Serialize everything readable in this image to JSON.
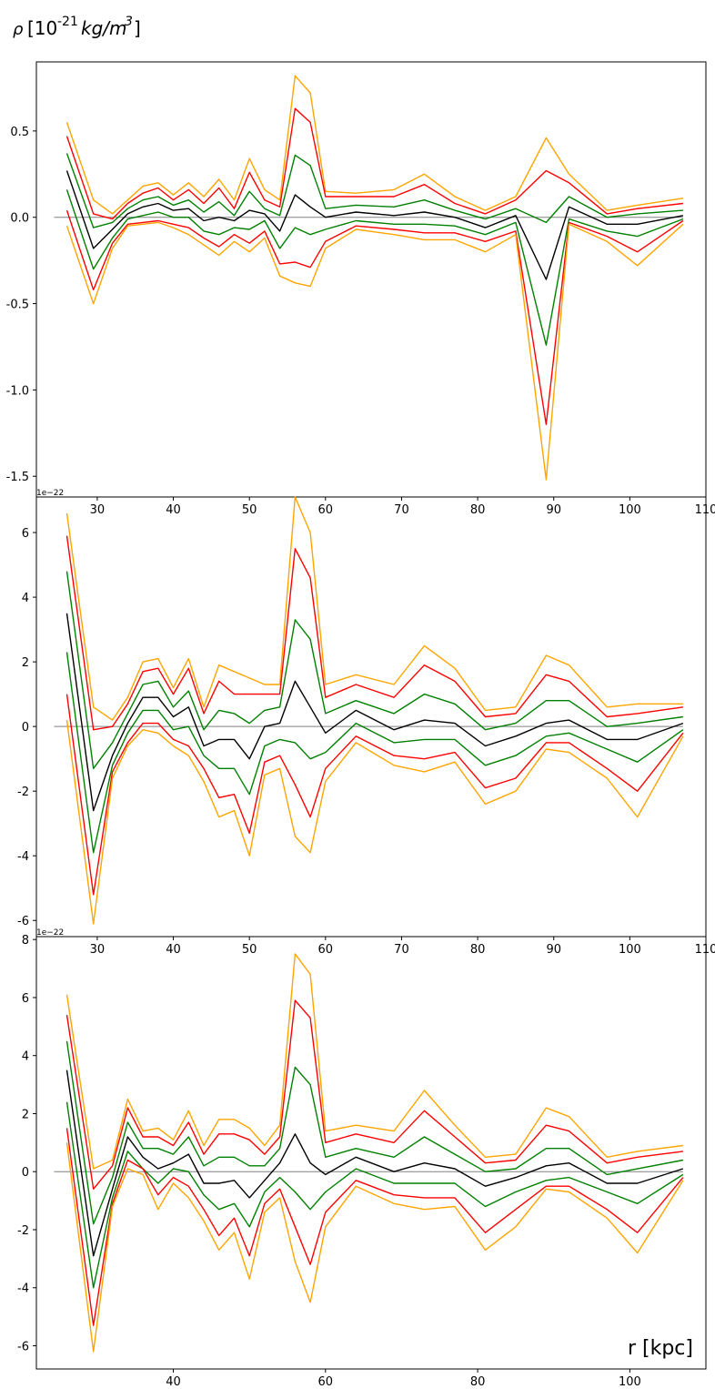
{
  "header": {
    "y_label_symbol": "ρ",
    "y_label_bracket_open": "[10",
    "y_label_exponent": "-21",
    "y_label_units": "kg/m",
    "y_label_units_exp": "3",
    "y_label_bracket_close": "]"
  },
  "chart_data": [
    {
      "type": "line",
      "xlim": [
        22,
        110
      ],
      "ylim": [
        -1.62,
        0.9
      ],
      "xticks": [
        "30",
        "40",
        "50",
        "60",
        "70",
        "80",
        "90",
        "100",
        "110"
      ],
      "xtick_values": [
        30,
        40,
        50,
        60,
        70,
        80,
        90,
        100,
        110
      ],
      "yticks": [
        "0.5",
        "0.0",
        "-0.5",
        "-1.0",
        "-1.5"
      ],
      "ytick_values": [
        0.5,
        0.0,
        -0.5,
        -1.0,
        -1.5
      ],
      "offset_text": "",
      "colors": [
        "#ffa500",
        "#ff0000",
        "#008000",
        "#000000",
        "#008000",
        "#ff0000",
        "#ffa500"
      ],
      "x": [
        26,
        29.5,
        32,
        34,
        36,
        38,
        40,
        42,
        44,
        46,
        48,
        50,
        52,
        54,
        56,
        58,
        60,
        64,
        69,
        73,
        77,
        81,
        85,
        89,
        92,
        97,
        101,
        107
      ],
      "series": [
        {
          "values": [
            0.55,
            0.1,
            0.02,
            0.1,
            0.18,
            0.2,
            0.13,
            0.2,
            0.12,
            0.22,
            0.1,
            0.34,
            0.16,
            0.1,
            0.82,
            0.72,
            0.15,
            0.14,
            0.16,
            0.25,
            0.12,
            0.04,
            0.12,
            0.46,
            0.25,
            0.04,
            0.07,
            0.11
          ]
        },
        {
          "values": [
            0.47,
            0.02,
            -0.01,
            0.08,
            0.14,
            0.17,
            0.1,
            0.16,
            0.08,
            0.17,
            0.05,
            0.26,
            0.1,
            0.06,
            0.63,
            0.55,
            0.12,
            0.12,
            0.12,
            0.19,
            0.08,
            0.02,
            0.1,
            0.27,
            0.2,
            0.02,
            0.05,
            0.08
          ]
        },
        {
          "values": [
            0.37,
            -0.06,
            -0.03,
            0.05,
            0.1,
            0.12,
            0.07,
            0.1,
            0.03,
            0.09,
            0.01,
            0.15,
            0.05,
            0.01,
            0.36,
            0.3,
            0.05,
            0.07,
            0.06,
            0.1,
            0.04,
            -0.01,
            0.05,
            -0.03,
            0.12,
            0.0,
            0.02,
            0.04
          ]
        },
        {
          "values": [
            0.27,
            -0.18,
            -0.07,
            0.02,
            0.06,
            0.08,
            0.04,
            0.05,
            -0.02,
            0.0,
            -0.02,
            0.04,
            0.02,
            -0.08,
            0.13,
            0.06,
            0.0,
            0.03,
            0.01,
            0.03,
            0.0,
            -0.06,
            0.01,
            -0.36,
            0.06,
            -0.04,
            -0.04,
            0.01
          ]
        },
        {
          "values": [
            0.16,
            -0.3,
            -0.12,
            -0.01,
            0.01,
            0.03,
            0.0,
            0.0,
            -0.08,
            -0.1,
            -0.06,
            -0.07,
            -0.02,
            -0.18,
            -0.06,
            -0.1,
            -0.07,
            -0.02,
            -0.04,
            -0.04,
            -0.05,
            -0.1,
            -0.03,
            -0.74,
            -0.01,
            -0.08,
            -0.11,
            -0.01
          ]
        },
        {
          "values": [
            0.04,
            -0.42,
            -0.15,
            -0.04,
            -0.03,
            -0.02,
            -0.04,
            -0.06,
            -0.12,
            -0.17,
            -0.1,
            -0.15,
            -0.08,
            -0.27,
            -0.26,
            -0.29,
            -0.14,
            -0.05,
            -0.07,
            -0.09,
            -0.09,
            -0.14,
            -0.08,
            -1.2,
            -0.03,
            -0.11,
            -0.2,
            -0.02
          ]
        },
        {
          "values": [
            -0.05,
            -0.5,
            -0.18,
            -0.05,
            -0.04,
            -0.03,
            -0.06,
            -0.1,
            -0.16,
            -0.22,
            -0.14,
            -0.2,
            -0.12,
            -0.34,
            -0.38,
            -0.4,
            -0.18,
            -0.07,
            -0.1,
            -0.13,
            -0.13,
            -0.2,
            -0.1,
            -1.52,
            -0.04,
            -0.14,
            -0.28,
            -0.04
          ]
        }
      ]
    },
    {
      "type": "line",
      "xlim": [
        22,
        110
      ],
      "ylim": [
        -6.5,
        7.1
      ],
      "xticks": [
        "30",
        "40",
        "50",
        "60",
        "70",
        "80",
        "90",
        "100",
        "110"
      ],
      "xtick_values": [
        30,
        40,
        50,
        60,
        70,
        80,
        90,
        100,
        110
      ],
      "yticks": [
        "6",
        "4",
        "2",
        "0",
        "-2",
        "-4",
        "-6"
      ],
      "ytick_values": [
        6,
        4,
        2,
        0,
        -2,
        -4,
        -6
      ],
      "offset_text": "1e−22",
      "colors": [
        "#ffa500",
        "#ff0000",
        "#008000",
        "#000000",
        "#008000",
        "#ff0000",
        "#ffa500"
      ],
      "x": [
        26,
        29.5,
        32,
        34,
        36,
        38,
        40,
        42,
        44,
        46,
        48,
        50,
        52,
        54,
        56,
        58,
        60,
        64,
        69,
        73,
        77,
        81,
        85,
        89,
        92,
        97,
        101,
        107
      ],
      "series": [
        {
          "values": [
            6.6,
            0.6,
            0.2,
            0.9,
            2.0,
            2.1,
            1.2,
            2.1,
            0.6,
            1.9,
            1.7,
            1.5,
            1.3,
            1.3,
            7.1,
            6.0,
            1.3,
            1.6,
            1.3,
            2.5,
            1.8,
            0.5,
            0.6,
            2.2,
            1.9,
            0.6,
            0.7,
            0.7
          ]
        },
        {
          "values": [
            5.9,
            -0.1,
            0.0,
            0.7,
            1.7,
            1.8,
            1.0,
            1.8,
            0.4,
            1.4,
            1.0,
            1.0,
            1.0,
            1.0,
            5.5,
            4.6,
            0.9,
            1.3,
            0.9,
            1.9,
            1.4,
            0.3,
            0.4,
            1.6,
            1.4,
            0.3,
            0.4,
            0.6
          ]
        },
        {
          "values": [
            4.8,
            -1.3,
            -0.5,
            0.4,
            1.3,
            1.4,
            0.6,
            1.1,
            -0.1,
            0.5,
            0.4,
            0.1,
            0.5,
            0.6,
            3.3,
            2.7,
            0.4,
            0.8,
            0.4,
            1.0,
            0.7,
            -0.1,
            0.1,
            0.8,
            0.8,
            0.0,
            0.1,
            0.3
          ]
        },
        {
          "values": [
            3.5,
            -2.6,
            -0.9,
            0.1,
            0.9,
            0.9,
            0.3,
            0.6,
            -0.6,
            -0.4,
            -0.4,
            -1.0,
            0.0,
            0.1,
            1.4,
            0.6,
            -0.2,
            0.5,
            -0.1,
            0.2,
            0.1,
            -0.6,
            -0.3,
            0.1,
            0.2,
            -0.4,
            -0.4,
            0.1
          ]
        },
        {
          "values": [
            2.3,
            -3.9,
            -1.2,
            -0.2,
            0.5,
            0.5,
            -0.1,
            0.0,
            -0.9,
            -1.3,
            -1.3,
            -2.1,
            -0.6,
            -0.4,
            -0.5,
            -1.0,
            -0.8,
            0.1,
            -0.5,
            -0.4,
            -0.4,
            -1.2,
            -0.9,
            -0.3,
            -0.2,
            -0.7,
            -1.1,
            -0.1
          ]
        },
        {
          "values": [
            1.0,
            -5.2,
            -1.4,
            -0.5,
            0.1,
            0.1,
            -0.4,
            -0.6,
            -1.3,
            -2.2,
            -2.1,
            -3.3,
            -1.1,
            -0.9,
            -1.8,
            -2.8,
            -1.3,
            -0.3,
            -0.9,
            -1.0,
            -0.8,
            -1.9,
            -1.6,
            -0.5,
            -0.5,
            -1.3,
            -2.0,
            -0.2
          ]
        },
        {
          "values": [
            0.2,
            -6.1,
            -1.6,
            -0.6,
            -0.1,
            -0.2,
            -0.6,
            -0.9,
            -1.7,
            -2.8,
            -2.6,
            -4.0,
            -1.5,
            -1.3,
            -3.4,
            -3.9,
            -1.7,
            -0.5,
            -1.2,
            -1.4,
            -1.1,
            -2.4,
            -2.0,
            -0.7,
            -0.8,
            -1.6,
            -2.8,
            -0.3
          ]
        }
      ]
    },
    {
      "type": "line",
      "xlim": [
        22,
        110
      ],
      "ylim": [
        -6.8,
        8.1
      ],
      "xticks": [
        "40",
        "60",
        "80",
        "100"
      ],
      "xtick_values": [
        40,
        60,
        80,
        100
      ],
      "yticks": [
        "8",
        "6",
        "4",
        "2",
        "0",
        "-2",
        "-4",
        "-6"
      ],
      "ytick_values": [
        8,
        6,
        4,
        2,
        0,
        -2,
        -4,
        -6
      ],
      "offset_text": "1e−22",
      "axis_label": "r [kpc]",
      "colors": [
        "#ffa500",
        "#ff0000",
        "#008000",
        "#000000",
        "#008000",
        "#ff0000",
        "#ffa500"
      ],
      "x": [
        26,
        29.5,
        32,
        34,
        36,
        38,
        40,
        42,
        44,
        46,
        48,
        50,
        52,
        54,
        56,
        58,
        60,
        64,
        69,
        73,
        77,
        81,
        85,
        89,
        92,
        97,
        101,
        107
      ],
      "series": [
        {
          "values": [
            6.1,
            0.1,
            0.4,
            2.5,
            1.4,
            1.5,
            1.1,
            2.1,
            0.9,
            1.8,
            1.8,
            1.5,
            0.9,
            1.6,
            7.5,
            6.8,
            1.4,
            1.6,
            1.4,
            2.8,
            1.6,
            0.5,
            0.6,
            2.2,
            1.9,
            0.5,
            0.7,
            0.9
          ]
        },
        {
          "values": [
            5.4,
            -0.6,
            0.2,
            2.2,
            1.2,
            1.2,
            0.9,
            1.7,
            0.6,
            1.3,
            1.3,
            1.1,
            0.6,
            1.2,
            5.9,
            5.3,
            1.0,
            1.3,
            1.0,
            2.1,
            1.2,
            0.3,
            0.4,
            1.6,
            1.4,
            0.3,
            0.5,
            0.7
          ]
        },
        {
          "values": [
            4.5,
            -1.8,
            -0.2,
            1.7,
            0.8,
            0.8,
            0.6,
            1.2,
            0.2,
            0.5,
            0.5,
            0.2,
            0.2,
            0.8,
            3.6,
            3.0,
            0.5,
            0.8,
            0.5,
            1.2,
            0.6,
            0.0,
            0.1,
            0.8,
            0.8,
            -0.1,
            0.1,
            0.4
          ]
        },
        {
          "values": [
            3.5,
            -2.9,
            -0.6,
            1.2,
            0.5,
            0.1,
            0.3,
            0.6,
            -0.4,
            -0.4,
            -0.3,
            -0.9,
            -0.3,
            0.3,
            1.3,
            0.3,
            -0.1,
            0.5,
            0.0,
            0.3,
            0.1,
            -0.5,
            -0.2,
            0.2,
            0.3,
            -0.4,
            -0.4,
            0.1
          ]
        },
        {
          "values": [
            2.4,
            -4.0,
            -0.9,
            0.7,
            0.1,
            -0.4,
            0.1,
            0.0,
            -0.8,
            -1.3,
            -1.1,
            -1.9,
            -0.7,
            -0.2,
            -0.7,
            -1.3,
            -0.7,
            0.1,
            -0.4,
            -0.4,
            -0.4,
            -1.2,
            -0.7,
            -0.3,
            -0.2,
            -0.7,
            -1.1,
            -0.1
          ]
        },
        {
          "values": [
            1.5,
            -5.3,
            -1.1,
            0.4,
            0.1,
            -0.8,
            -0.2,
            -0.5,
            -1.3,
            -2.2,
            -1.6,
            -2.9,
            -1.1,
            -0.6,
            -1.9,
            -3.2,
            -1.4,
            -0.3,
            -0.8,
            -0.9,
            -0.9,
            -2.1,
            -1.3,
            -0.5,
            -0.5,
            -1.3,
            -2.1,
            -0.2
          ]
        },
        {
          "values": [
            1.0,
            -6.2,
            -1.2,
            0.1,
            -0.1,
            -1.3,
            -0.4,
            -0.9,
            -1.7,
            -2.7,
            -2.1,
            -3.7,
            -1.4,
            -0.9,
            -3.1,
            -4.5,
            -1.9,
            -0.5,
            -1.1,
            -1.3,
            -1.2,
            -2.7,
            -1.9,
            -0.6,
            -0.7,
            -1.6,
            -2.8,
            -0.3
          ]
        }
      ]
    }
  ]
}
